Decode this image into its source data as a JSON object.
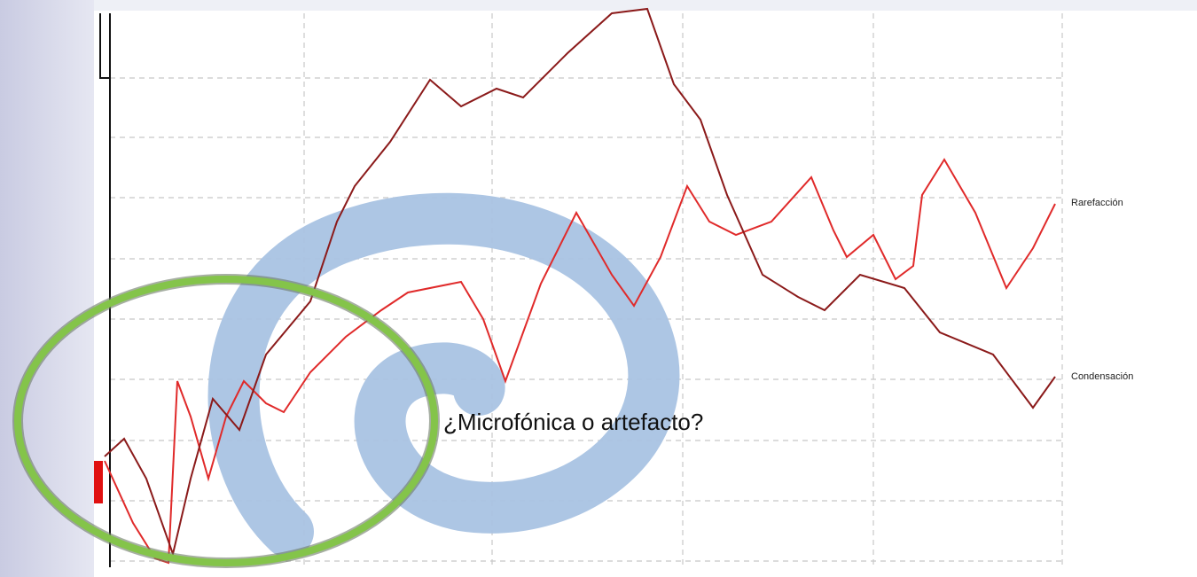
{
  "labels": {
    "rarefaction": "Rarefacción",
    "condensation": "Condensación"
  },
  "caption": "¿Microfónica o artefacto?"
}
